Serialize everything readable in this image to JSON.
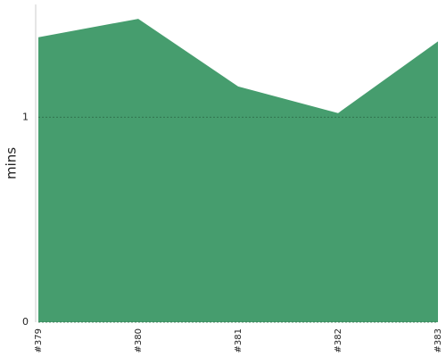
{
  "chart_data": {
    "type": "area",
    "ylabel": "mins",
    "categories": [
      "#379",
      "#380",
      "#381",
      "#382",
      "#383"
    ],
    "values": [
      1.39,
      1.48,
      1.15,
      1.02,
      1.37
    ],
    "color": "#469d6e",
    "ylim": [
      0,
      1.55
    ],
    "yticks": [
      0,
      1
    ],
    "grid": true
  }
}
